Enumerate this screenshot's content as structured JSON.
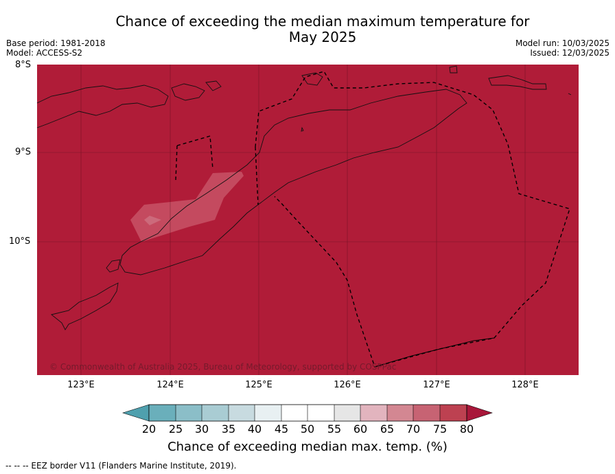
{
  "title_line1": "Chance of exceeding the median maximum temperature for",
  "title_line2": "May 2025",
  "meta_left": {
    "base_period": "Base period: 1981-2018",
    "model": "Model: ACCESS-S2"
  },
  "meta_right": {
    "model_run": "Model run: 10/03/2025",
    "issued": "Issued: 12/03/2025"
  },
  "map": {
    "latitude_labels": [
      "8°S",
      "9°S",
      "10°S"
    ],
    "longitude_labels": [
      "123°E",
      "124°E",
      "125°E",
      "126°E",
      "127°E",
      "128°E"
    ],
    "copyright": "© Commonwealth of Australia 2025, Bureau of Meteorology, supported by COSPPac",
    "dominant_category": ">80%",
    "colors": {
      "dominant": "#b01c38",
      "patch_high": "#c44a5f",
      "patch_mid": "#cc6a7b"
    }
  },
  "colorbar": {
    "ticks": [
      "20",
      "25",
      "30",
      "35",
      "40",
      "45",
      "50",
      "55",
      "60",
      "65",
      "70",
      "75",
      "80"
    ],
    "colors": [
      "#4fa0ae",
      "#6aafbb",
      "#8bbec8",
      "#a9ccd3",
      "#c8dbe0",
      "#e8f0f2",
      "#ffffff",
      "#ffffff",
      "#e6e6e6",
      "#e2b4be",
      "#d38792",
      "#c76373",
      "#bd4151",
      "#a8173a"
    ],
    "label": "Chance of exceeding median max. temp. (%)"
  },
  "footer": "--  --  -- EEZ border V11 (Flanders Marine Institute, 2019)."
}
